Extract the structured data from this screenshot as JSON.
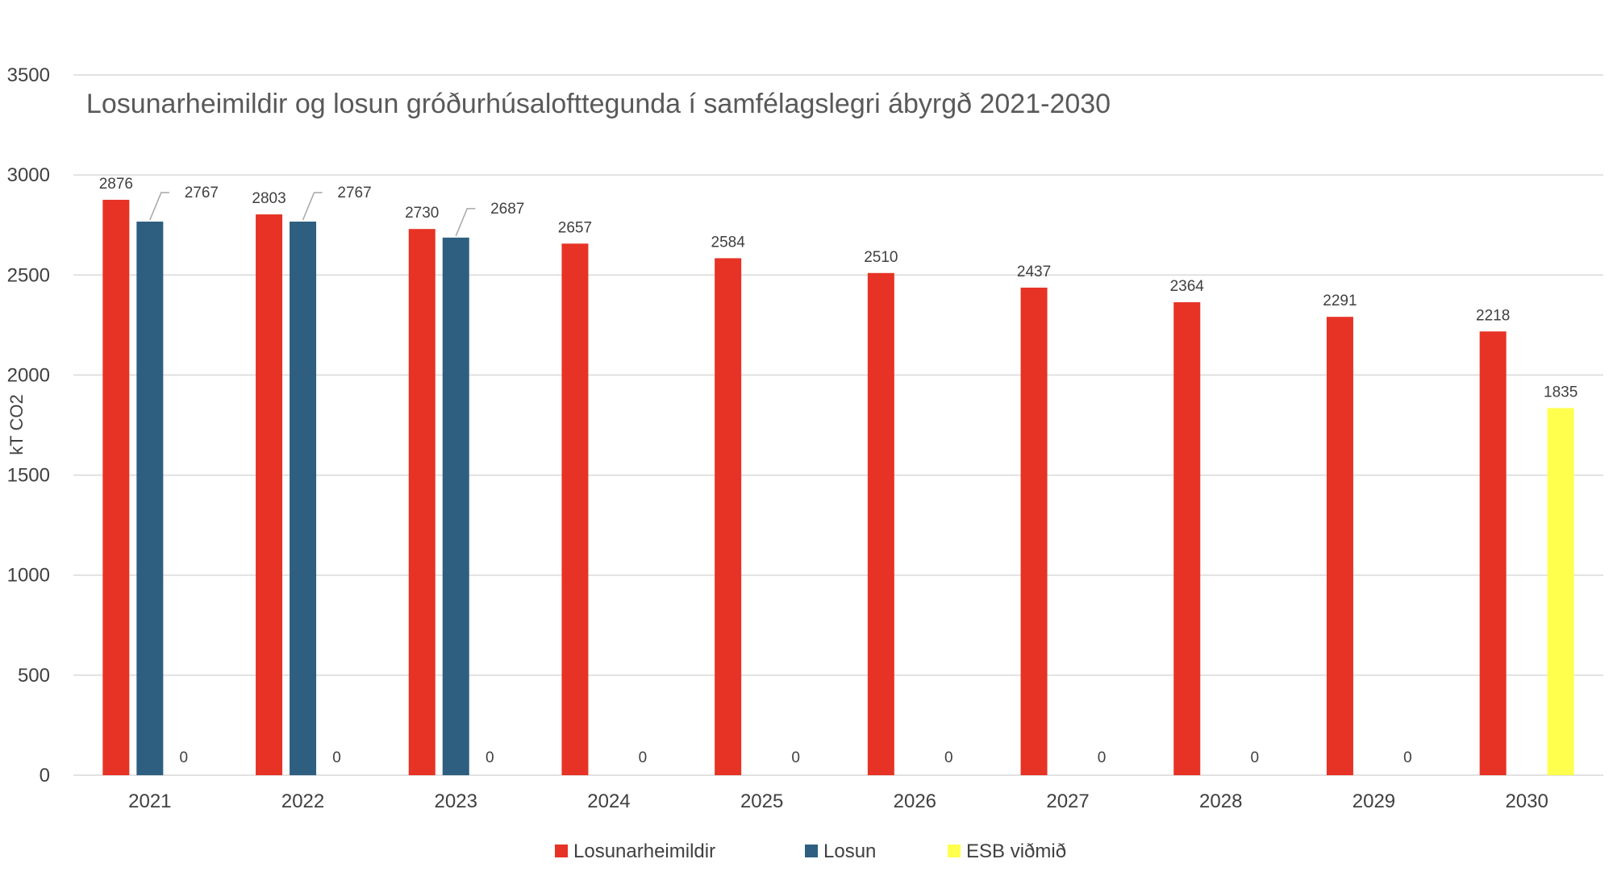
{
  "chart_data": {
    "type": "bar",
    "title": "Losunarheimildir og losun gróðurhúsalofttegunda í samfélagslegri ábyrgð 2021-2030",
    "xlabel": "",
    "ylabel": "kT CO2",
    "ylim": [
      0,
      3500
    ],
    "yticks": [
      "0",
      "500",
      "1000",
      "1500",
      "2000",
      "2500",
      "3000",
      "3500"
    ],
    "grid": true,
    "legend_position": "bottom",
    "categories": [
      "2021",
      "2022",
      "2023",
      "2024",
      "2025",
      "2026",
      "2027",
      "2028",
      "2029",
      "2030"
    ],
    "series": [
      {
        "name": "Losunarheimildir",
        "color": "#e63325",
        "values": [
          2876,
          2803,
          2730,
          2657,
          2584,
          2510,
          2437,
          2364,
          2291,
          2218
        ],
        "labels": [
          "2876",
          "2803",
          "2730",
          "2657",
          "2584",
          "2510",
          "2437",
          "2364",
          "2291",
          "2218"
        ]
      },
      {
        "name": "Losun",
        "color": "#2e5f80",
        "values": [
          2767,
          2767,
          2687,
          null,
          null,
          null,
          null,
          null,
          null,
          null
        ],
        "labels": [
          "2767",
          "2767",
          "2687",
          "",
          "",
          "",
          "",
          "",
          "",
          ""
        ]
      },
      {
        "name": "ESB viðmið",
        "color": "#ffff4d",
        "values": [
          0,
          0,
          0,
          0,
          0,
          0,
          0,
          0,
          0,
          1835
        ],
        "labels": [
          "0",
          "0",
          "0",
          "0",
          "0",
          "0",
          "0",
          "0",
          "0",
          "1835"
        ]
      }
    ]
  }
}
